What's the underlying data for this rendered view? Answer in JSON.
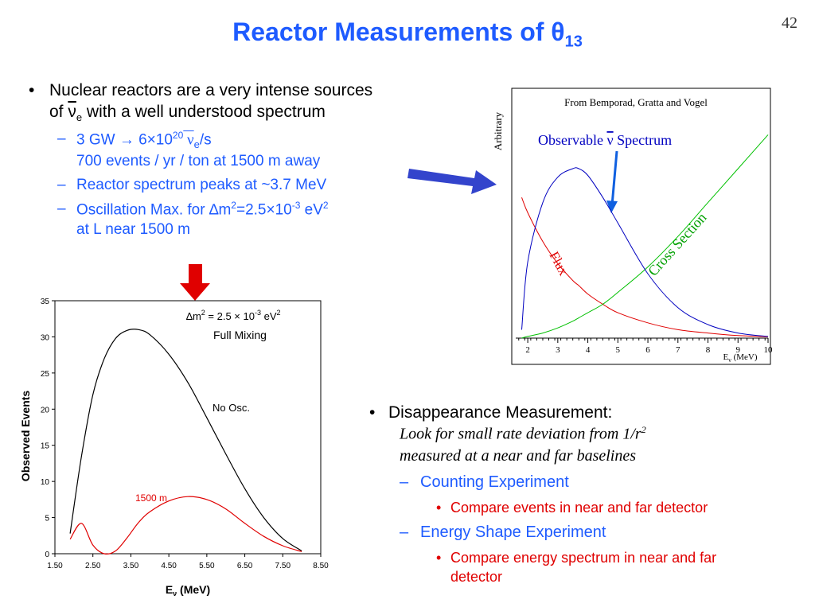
{
  "slide": {
    "title_main": "Reactor Measurements of θ",
    "title_sub": "13",
    "page_number": "42"
  },
  "left_bullets": {
    "b1_line1": "Nuclear reactors are a very intense sources",
    "b1_of": "of ",
    "b1_nu": "ν",
    "b1_e": "e",
    "b1_rest": " with a well understood spectrum",
    "s1_a": "3 GW → 6×10",
    "s1_sup": "20",
    "s1_nu": " ν",
    "s1_e": "e",
    "s1_b": "/s",
    "s1_line2": "700 events / yr / ton at 1500 m away",
    "s2": "Reactor spectrum peaks at ~3.7 MeV",
    "s3_a": "Oscillation Max. for ∆m",
    "s3_sup1": "2",
    "s3_b": "=2.5×10",
    "s3_sup2": "-3",
    "s3_c": " eV",
    "s3_sup3": "2",
    "s3_line2": "at L near 1500 m"
  },
  "right_bullets": {
    "b1": "Disappearance Measurement:",
    "ital1_a": "Look for small rate deviation from 1/r",
    "ital1_sup": "2",
    "ital2": "measured at a near and far baselines",
    "s1": "Counting Experiment",
    "s1_sub": "Compare events in near and far detector",
    "s2": "Energy Shape Experiment",
    "s2_sub_line1": "Compare energy spectrum in near and far",
    "s2_sub_line2": "detector"
  },
  "spectrum_chart": {
    "source": "From Bemporad, Gratta and Vogel",
    "ylabel": "Arbitrary",
    "observable_a": "Observable ",
    "observable_nu": "ν",
    "observable_b": "  Spectrum",
    "flux_label": "Flux",
    "cross_label": "Cross Section",
    "xlabel_a": "E",
    "xlabel_sub": "ν",
    "xlabel_b": " (MeV)",
    "x_ticks": [
      "2",
      "3",
      "4",
      "5",
      "6",
      "7",
      "8",
      "9",
      "10"
    ],
    "colors": {
      "flux": "#E00000",
      "cross": "#00C000",
      "spectrum": "#0000C0"
    }
  },
  "chart_data": [
    {
      "type": "line",
      "title": "From Bemporad, Gratta and Vogel",
      "xlabel": "Eν (MeV)",
      "ylabel": "Arbitrary",
      "xlim": [
        1.6,
        10
      ],
      "x": [
        1.8,
        2,
        2.5,
        3,
        3.5,
        3.7,
        4,
        4.5,
        5,
        6,
        7,
        8,
        9,
        10
      ],
      "series": [
        {
          "name": "Flux",
          "values": [
            0.83,
            0.74,
            0.57,
            0.44,
            0.34,
            0.31,
            0.26,
            0.2,
            0.15,
            0.09,
            0.05,
            0.03,
            0.015,
            0.008
          ]
        },
        {
          "name": "Cross Section",
          "values": [
            0.0,
            0.01,
            0.03,
            0.06,
            0.1,
            0.12,
            0.15,
            0.2,
            0.27,
            0.42,
            0.6,
            0.8,
            1.0,
            1.2
          ]
        },
        {
          "name": "Observable ν Spectrum",
          "values": [
            0.05,
            0.45,
            0.8,
            0.95,
            1.0,
            1.0,
            0.96,
            0.83,
            0.68,
            0.38,
            0.18,
            0.08,
            0.03,
            0.01
          ]
        }
      ]
    },
    {
      "type": "line",
      "xlabel": "Eν (MeV)",
      "ylabel": "Observed Events",
      "xlim": [
        1.5,
        8.5
      ],
      "ylim": [
        0,
        35
      ],
      "x_ticks": [
        "1.50",
        "2.50",
        "3.50",
        "4.50",
        "5.50",
        "6.50",
        "7.50",
        "8.50"
      ],
      "y_ticks": [
        "0",
        "5",
        "10",
        "15",
        "20",
        "25",
        "30",
        "35"
      ],
      "annotation_a": "∆m",
      "annotation_sup1": "2",
      "annotation_b": " = 2.5 × 10",
      "annotation_sup2": "-3",
      "annotation_c": " eV",
      "annotation_sup3": "2",
      "annotation_line2": "Full Mixing",
      "x": [
        1.9,
        2.2,
        2.5,
        2.8,
        3.1,
        3.4,
        3.7,
        4.0,
        4.5,
        5.0,
        5.5,
        6.0,
        6.5,
        7.0,
        7.5,
        8.0
      ],
      "series": [
        {
          "name": "No Osc.",
          "color": "#000000",
          "values": [
            2.8,
            13.5,
            22.0,
            27.0,
            29.8,
            30.9,
            31.0,
            30.3,
            27.6,
            23.7,
            18.8,
            13.8,
            9.0,
            5.0,
            2.1,
            0.4
          ]
        },
        {
          "name": "1500 m",
          "color": "#E00000",
          "values": [
            2.0,
            4.2,
            1.2,
            0.0,
            0.4,
            2.2,
            4.3,
            5.8,
            7.3,
            7.9,
            7.5,
            6.2,
            4.2,
            2.4,
            1.1,
            0.3
          ]
        }
      ]
    }
  ]
}
